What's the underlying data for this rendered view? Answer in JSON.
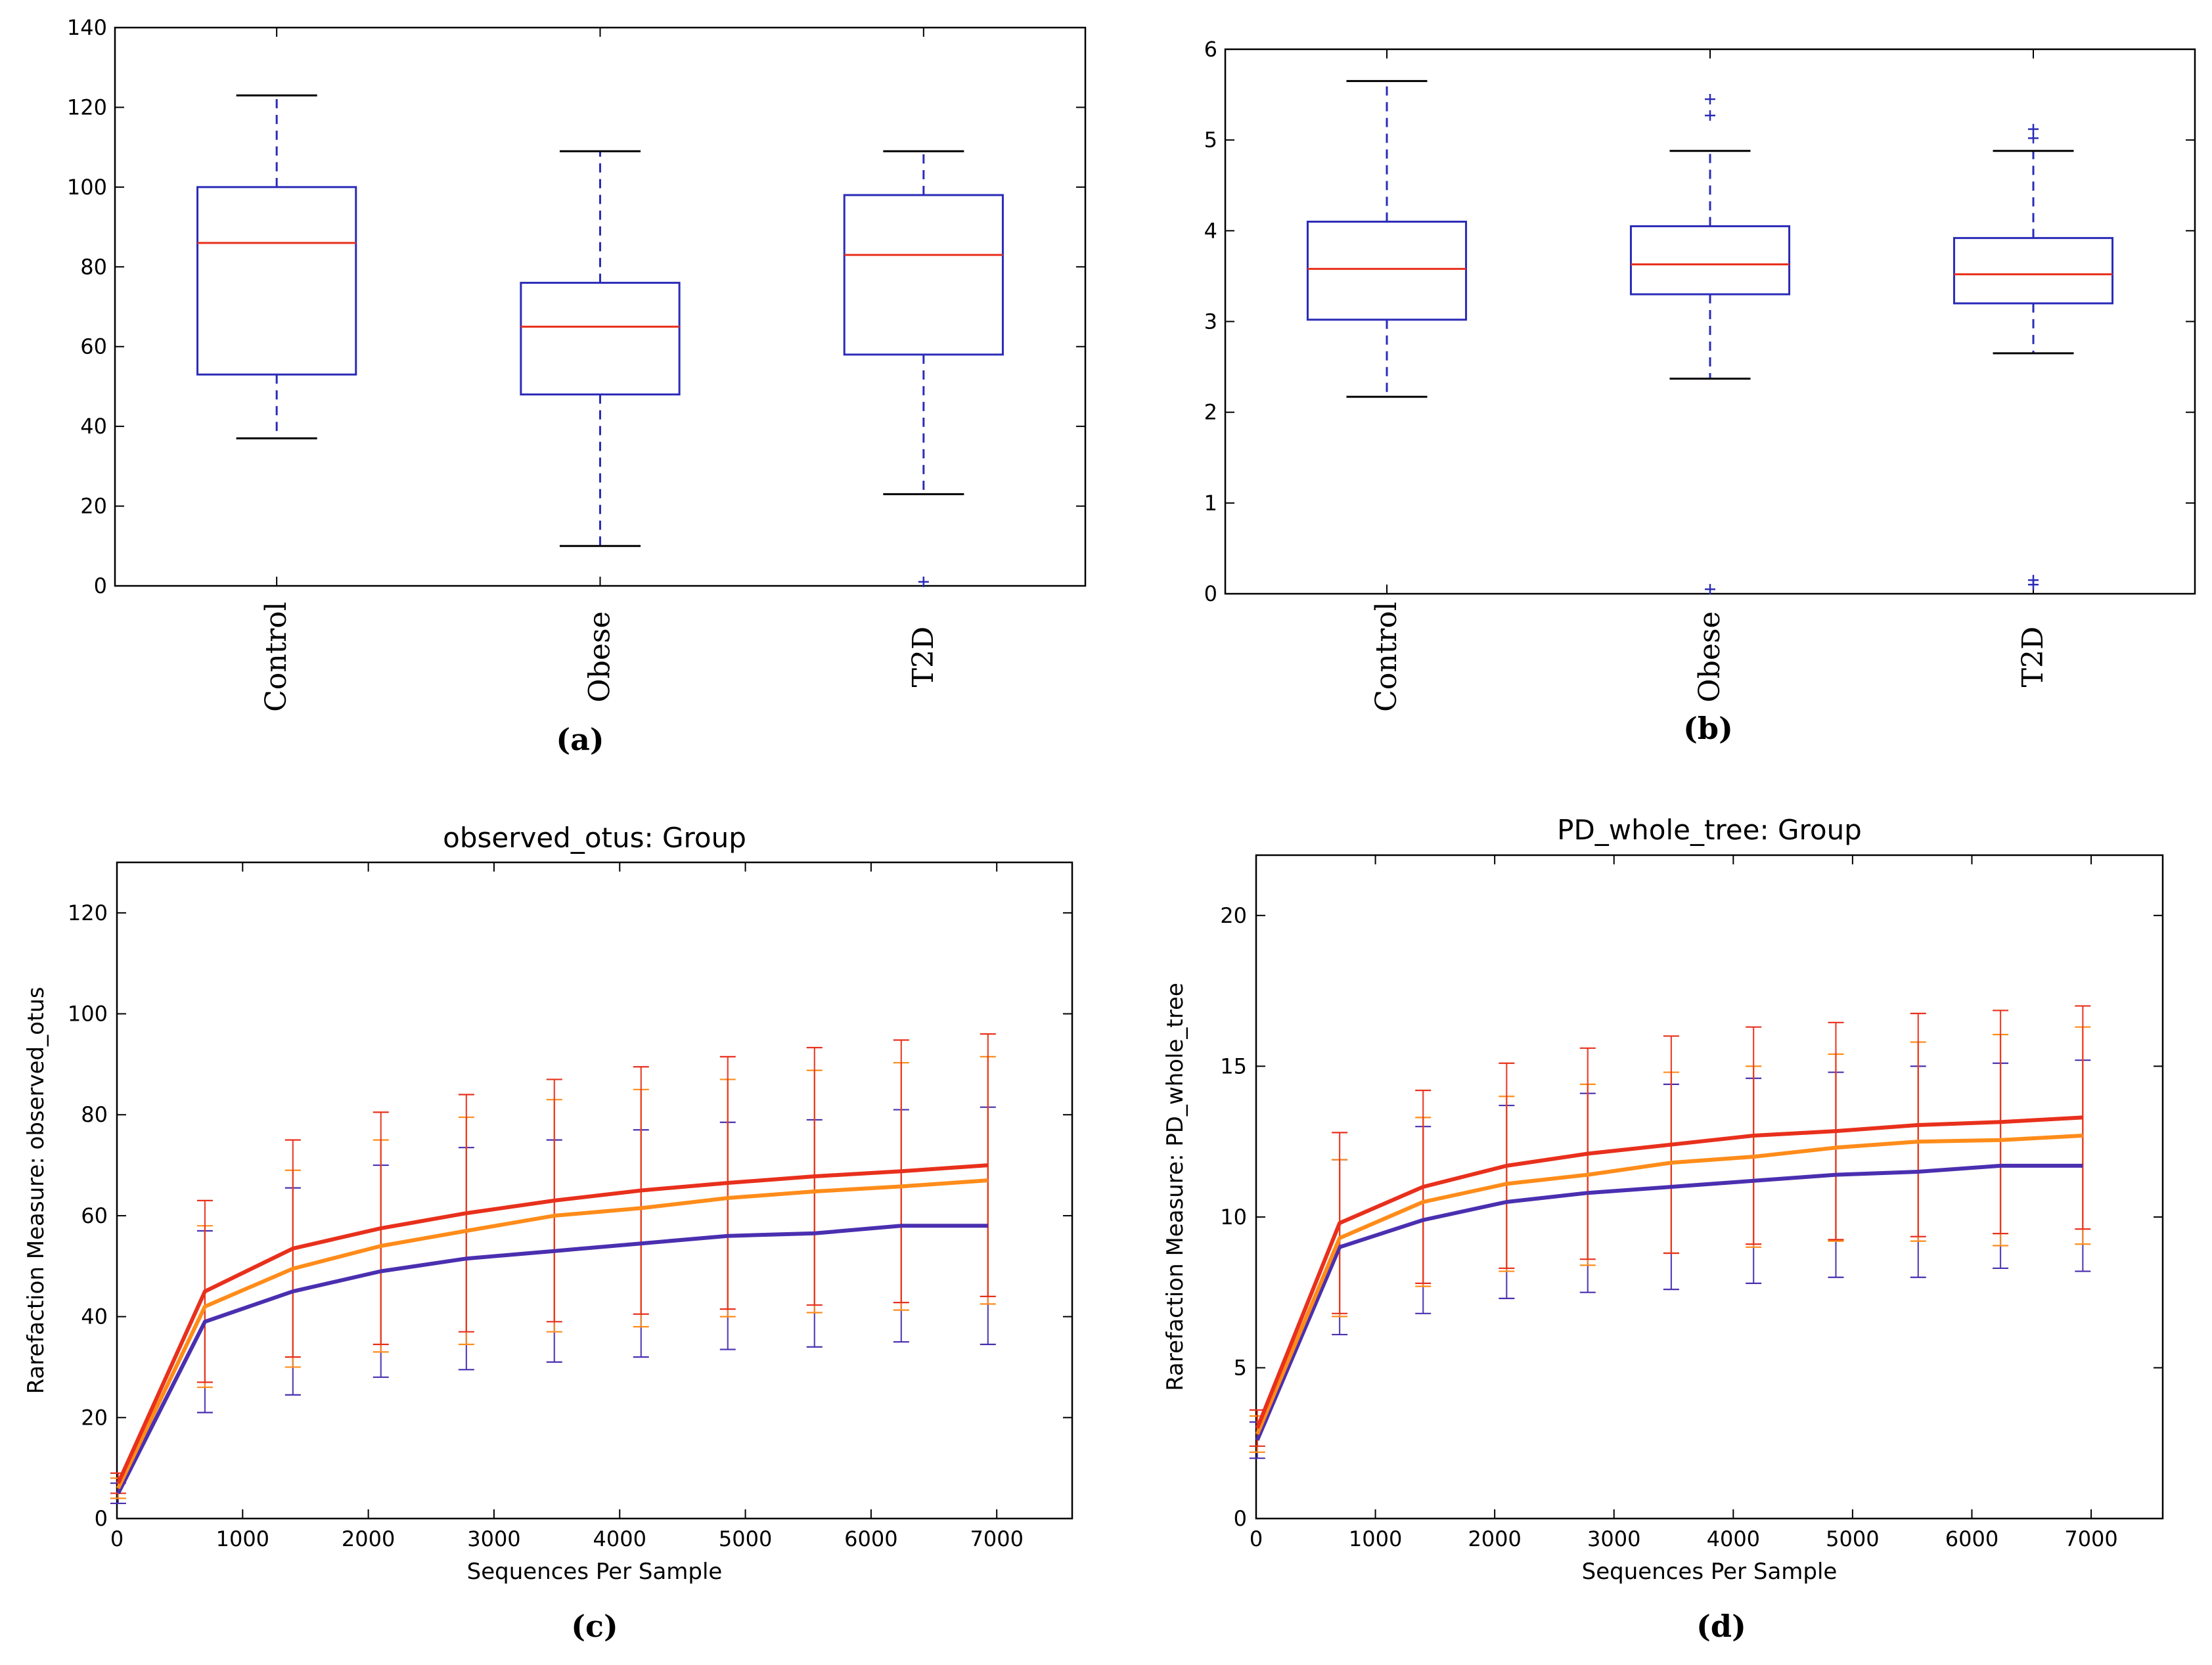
{
  "colors": {
    "box": "#2b2bb8",
    "median": "#e8301c",
    "whisker": "#2b2bb8",
    "red_series": "#e8301c",
    "orange_series": "#ff8c1a",
    "blue_series": "#4a2fb0"
  },
  "chart_data": [
    {
      "id": "a",
      "type": "box",
      "caption": "(a)",
      "categories": [
        "Control",
        "Obese",
        "T2D"
      ],
      "ylim": [
        0,
        140
      ],
      "yticks": [
        0,
        20,
        40,
        60,
        80,
        100,
        120,
        140
      ],
      "boxes": [
        {
          "label": "Control",
          "whislo": 37,
          "q1": 53,
          "med": 86,
          "q3": 100,
          "whishi": 123,
          "fliers": []
        },
        {
          "label": "Obese",
          "whislo": 10,
          "q1": 48,
          "med": 65,
          "q3": 76,
          "whishi": 109,
          "fliers": []
        },
        {
          "label": "T2D",
          "whislo": 23,
          "q1": 58,
          "med": 83,
          "q3": 98,
          "whishi": 109,
          "fliers": [
            1
          ]
        }
      ]
    },
    {
      "id": "b",
      "type": "box",
      "caption": "(b)",
      "categories": [
        "Control",
        "Obese",
        "T2D"
      ],
      "ylim": [
        0,
        6
      ],
      "yticks": [
        0,
        1,
        2,
        3,
        4,
        5,
        6
      ],
      "boxes": [
        {
          "label": "Control",
          "whislo": 2.17,
          "q1": 3.02,
          "med": 3.58,
          "q3": 4.1,
          "whishi": 5.65,
          "fliers": []
        },
        {
          "label": "Obese",
          "whislo": 2.37,
          "q1": 3.3,
          "med": 3.63,
          "q3": 4.05,
          "whishi": 4.88,
          "fliers": [
            5.27,
            5.45,
            0.05
          ]
        },
        {
          "label": "T2D",
          "whislo": 2.65,
          "q1": 3.2,
          "med": 3.52,
          "q3": 3.92,
          "whishi": 4.88,
          "fliers": [
            5.02,
            5.12,
            0.1,
            0.15
          ]
        }
      ]
    },
    {
      "id": "c",
      "type": "line",
      "caption": "(c)",
      "title": "observed_otus: Group",
      "xlabel": "Sequences Per Sample",
      "ylabel": "Rarefaction Measure: observed_otus",
      "xlim": [
        0,
        7600
      ],
      "ylim": [
        0,
        130
      ],
      "xticks": [
        0,
        1000,
        2000,
        3000,
        4000,
        5000,
        6000,
        7000
      ],
      "yticks": [
        0,
        20,
        40,
        60,
        80,
        100,
        120
      ],
      "x": [
        10,
        700,
        1400,
        2100,
        2780,
        3480,
        4170,
        4860,
        5550,
        6240,
        6930
      ],
      "series": [
        {
          "name": "red",
          "color": "#e8301c",
          "values": [
            7,
            45,
            53.5,
            57.5,
            60.5,
            63,
            65,
            66.5,
            67.8,
            68.8,
            70
          ],
          "err": [
            2,
            18,
            21.5,
            23,
            23.5,
            24,
            24.5,
            25,
            25.5,
            26,
            26
          ]
        },
        {
          "name": "orange",
          "color": "#ff8c1a",
          "values": [
            6,
            42,
            49.5,
            54,
            57,
            60,
            61.5,
            63.5,
            64.8,
            65.8,
            67
          ],
          "err": [
            2,
            16,
            19.5,
            21,
            22.5,
            23,
            23.5,
            23.5,
            24,
            24.5,
            24.5
          ]
        },
        {
          "name": "blue",
          "color": "#4a2fb0",
          "values": [
            5,
            39,
            45,
            49,
            51.5,
            53,
            54.5,
            56,
            56.5,
            58,
            58
          ],
          "err": [
            2,
            18,
            20.5,
            21,
            22,
            22,
            22.5,
            22.5,
            22.5,
            23,
            23.5
          ]
        }
      ]
    },
    {
      "id": "d",
      "type": "line",
      "caption": "(d)",
      "title": "PD_whole_tree: Group",
      "xlabel": "Sequences Per Sample",
      "ylabel": "Rarefaction Measure: PD_whole_tree",
      "xlim": [
        0,
        7600
      ],
      "ylim": [
        0,
        22
      ],
      "xticks": [
        0,
        1000,
        2000,
        3000,
        4000,
        5000,
        6000,
        7000
      ],
      "yticks": [
        0,
        5,
        10,
        15,
        20
      ],
      "x": [
        10,
        700,
        1400,
        2100,
        2780,
        3480,
        4170,
        4860,
        5550,
        6240,
        6930
      ],
      "series": [
        {
          "name": "red",
          "color": "#e8301c",
          "values": [
            3,
            9.8,
            11,
            11.7,
            12.1,
            12.4,
            12.7,
            12.85,
            13.05,
            13.15,
            13.3
          ],
          "err": [
            0.6,
            3,
            3.2,
            3.4,
            3.5,
            3.6,
            3.6,
            3.6,
            3.7,
            3.7,
            3.7
          ]
        },
        {
          "name": "orange",
          "color": "#ff8c1a",
          "values": [
            2.8,
            9.3,
            10.5,
            11.1,
            11.4,
            11.8,
            12,
            12.3,
            12.5,
            12.55,
            12.7
          ],
          "err": [
            0.6,
            2.6,
            2.8,
            2.9,
            3,
            3,
            3,
            3.1,
            3.3,
            3.5,
            3.6
          ]
        },
        {
          "name": "blue",
          "color": "#4a2fb0",
          "values": [
            2.6,
            9,
            9.9,
            10.5,
            10.8,
            11,
            11.2,
            11.4,
            11.5,
            11.7,
            11.7
          ],
          "err": [
            0.6,
            2.9,
            3.1,
            3.2,
            3.3,
            3.4,
            3.4,
            3.4,
            3.5,
            3.4,
            3.5
          ]
        }
      ]
    }
  ]
}
